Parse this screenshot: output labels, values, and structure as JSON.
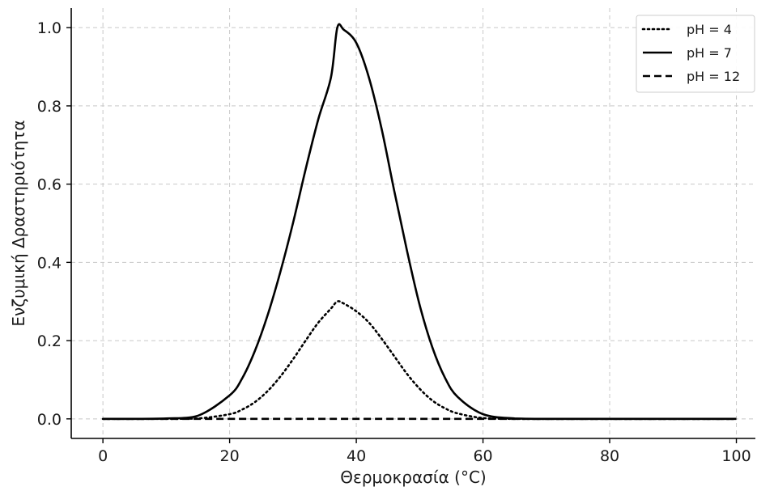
{
  "chart_data": {
    "type": "line",
    "xlabel": "Θερμοκρασία (°C)",
    "ylabel": "Ενζυμική Δραστηριότητα",
    "xlim": [
      -5,
      103
    ],
    "ylim": [
      -0.05,
      1.05
    ],
    "xticks": [
      0,
      20,
      40,
      60,
      80,
      100
    ],
    "xtick_labels": [
      "0",
      "20",
      "40",
      "60",
      "80",
      "100"
    ],
    "yticks": [
      0.0,
      0.2,
      0.4,
      0.6,
      0.8,
      1.0
    ],
    "ytick_labels": [
      "0.0",
      "0.2",
      "0.4",
      "0.6",
      "0.8",
      "1.0"
    ],
    "grid": true,
    "legend_position": "top-right",
    "x": [
      0,
      5,
      10,
      15,
      20,
      22,
      24,
      26,
      28,
      30,
      32,
      34,
      36,
      37,
      38,
      40,
      42,
      44,
      46,
      48,
      50,
      52,
      54,
      56,
      60,
      65,
      70,
      80,
      90,
      100
    ],
    "series": [
      {
        "name": "pH = 4",
        "style": "dotted",
        "color": "#000000",
        "values": [
          0.0,
          0.0,
          0.0,
          0.001,
          0.012,
          0.024,
          0.043,
          0.071,
          0.108,
          0.152,
          0.2,
          0.246,
          0.282,
          0.3,
          0.295,
          0.275,
          0.246,
          0.205,
          0.16,
          0.115,
          0.077,
          0.047,
          0.027,
          0.014,
          0.002,
          0.0,
          0.0,
          0.0,
          0.0,
          0.0
        ]
      },
      {
        "name": "pH = 7",
        "style": "solid",
        "color": "#000000",
        "values": [
          0.0,
          0.0,
          0.001,
          0.008,
          0.06,
          0.104,
          0.174,
          0.265,
          0.375,
          0.5,
          0.638,
          0.766,
          0.873,
          1.0,
          0.995,
          0.961,
          0.872,
          0.741,
          0.582,
          0.43,
          0.291,
          0.183,
          0.105,
          0.056,
          0.012,
          0.001,
          0.0,
          0.0,
          0.0,
          0.0
        ]
      },
      {
        "name": "pH = 12",
        "style": "dashed",
        "color": "#000000",
        "values": [
          0.0,
          0.0,
          0.0,
          0.0,
          0.0,
          0.0,
          0.0,
          0.0,
          0.0,
          0.0,
          0.0,
          0.0,
          0.0,
          0.0,
          0.0,
          0.0,
          0.0,
          0.0,
          0.0,
          0.0,
          0.0,
          0.0,
          0.0,
          0.0,
          0.0,
          0.0,
          0.0,
          0.0,
          0.0,
          0.0
        ]
      }
    ]
  }
}
